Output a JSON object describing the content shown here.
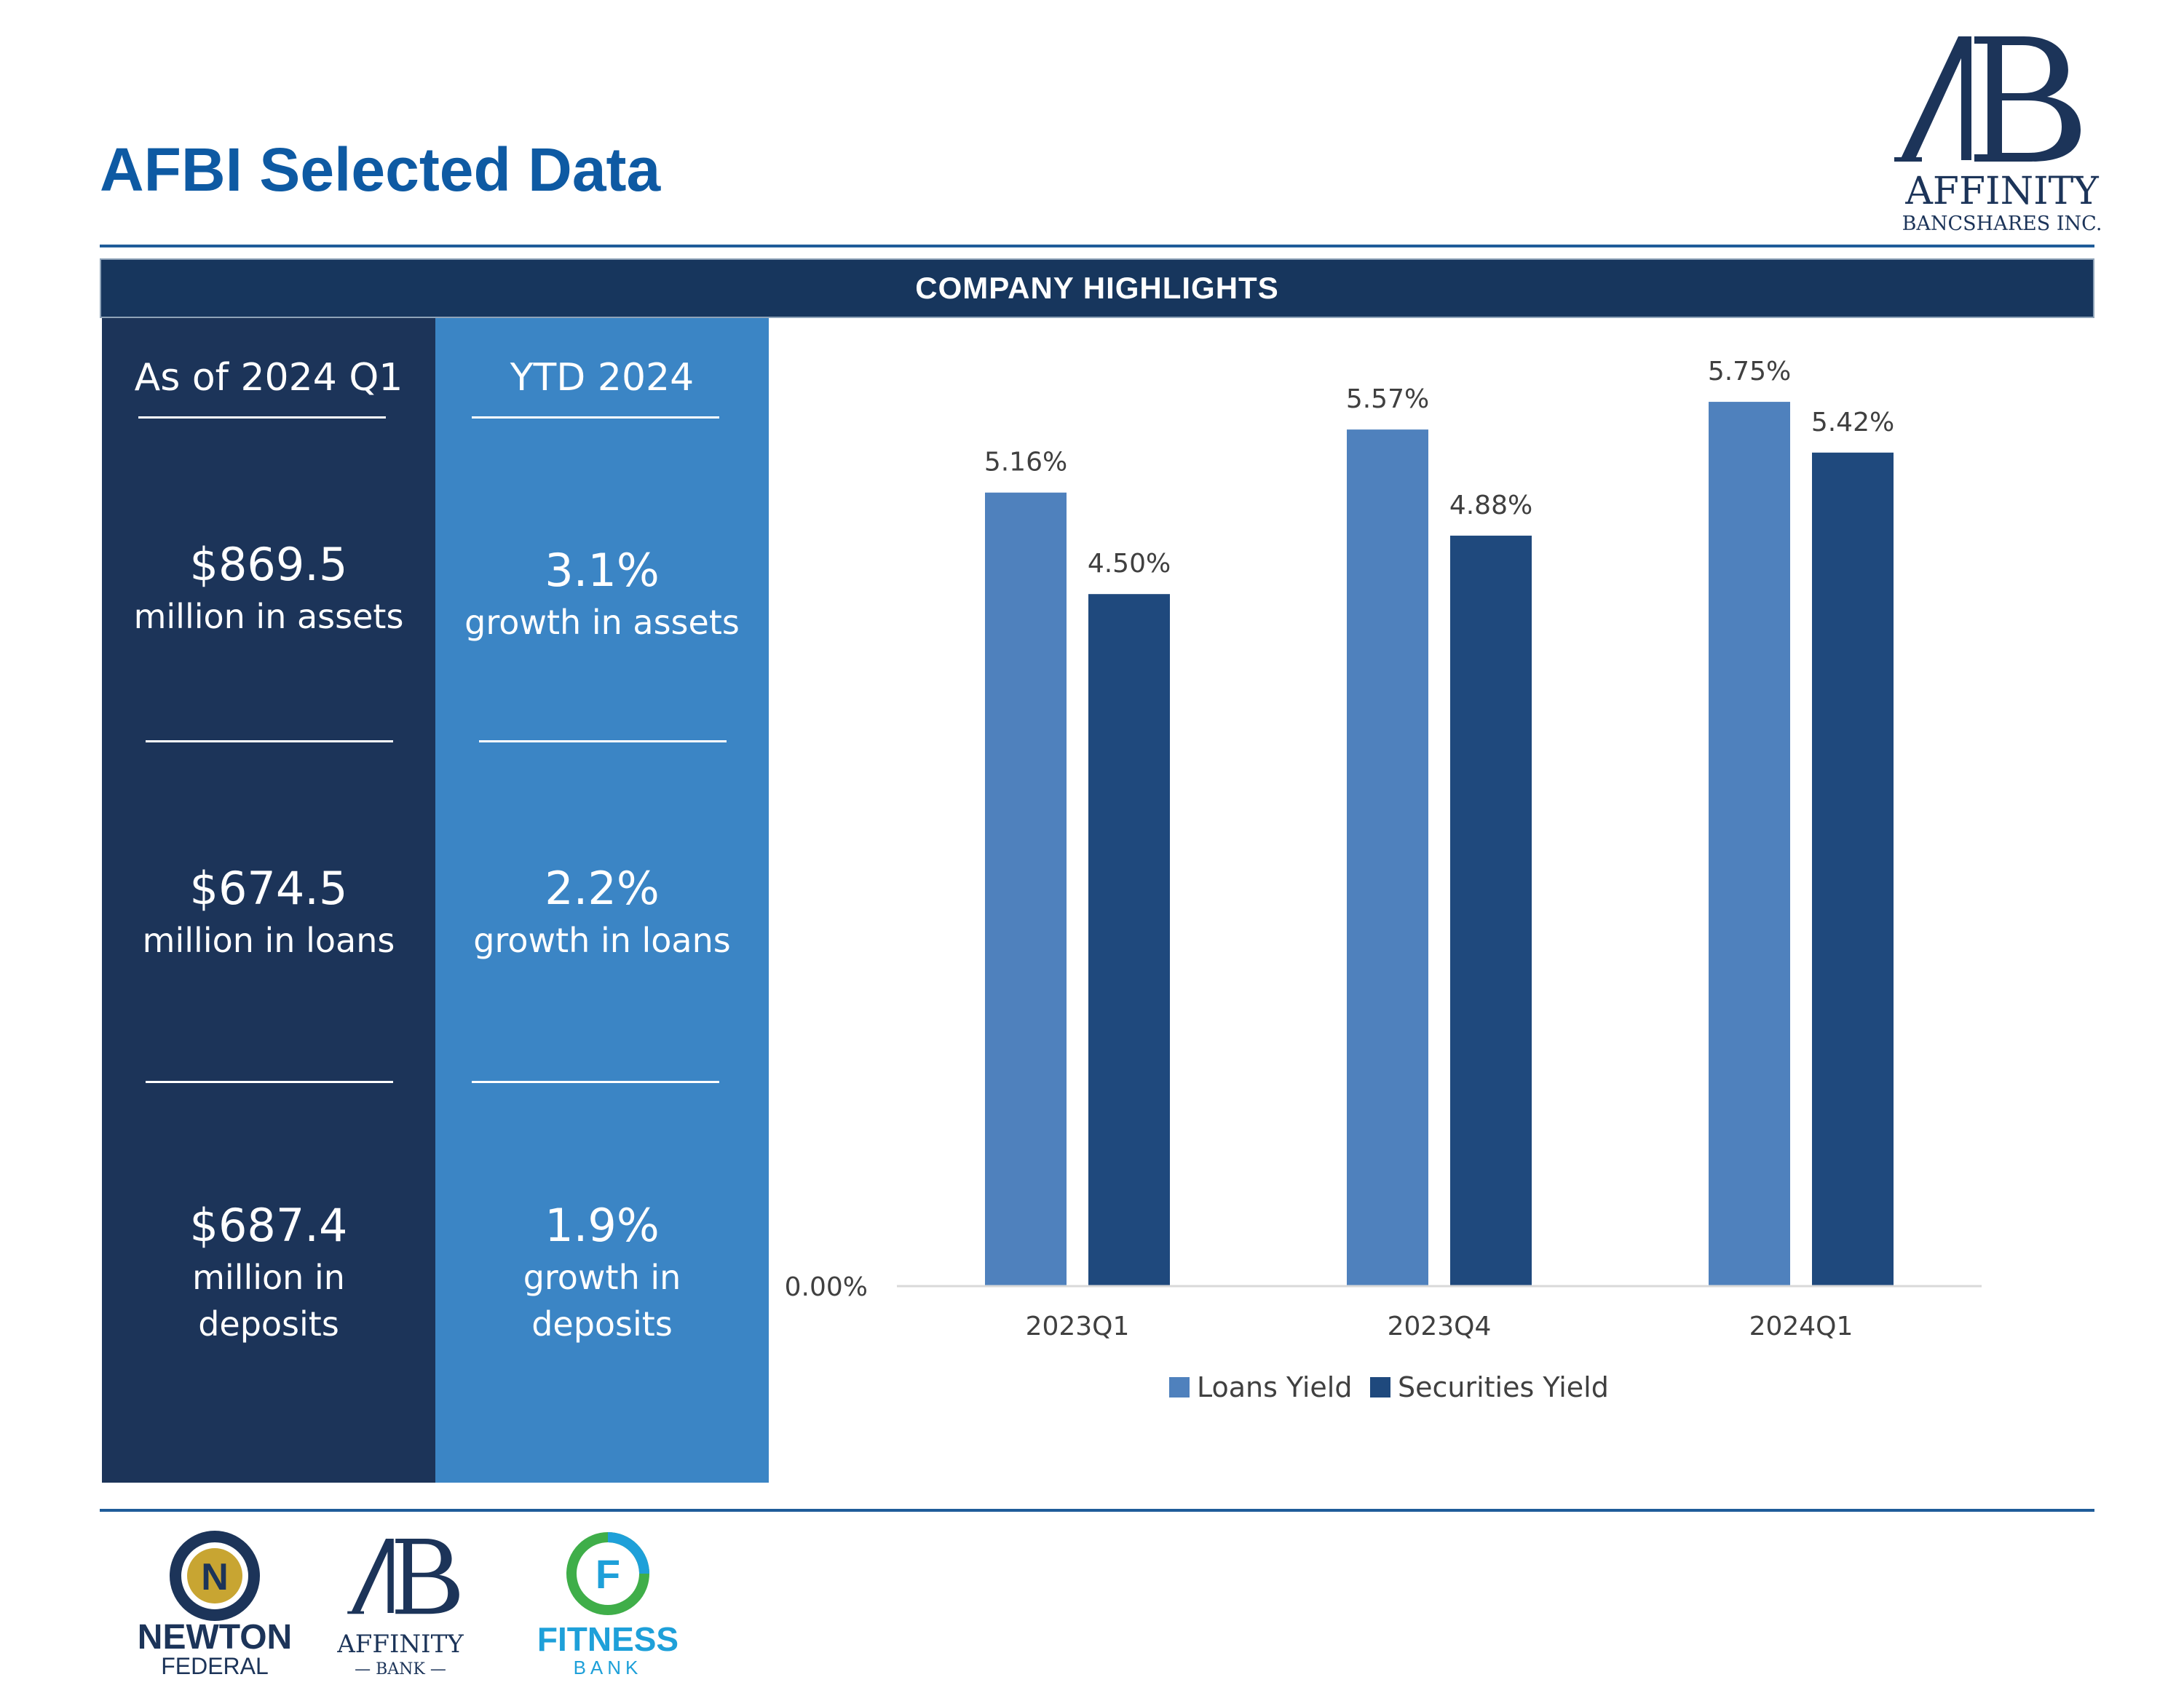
{
  "title": "AFBI Selected Data",
  "logo": {
    "monogram": "AB",
    "name": "AFFINITY",
    "sub": "BANCSHARES INC."
  },
  "section_header": "COMPANY HIGHLIGHTS",
  "left_column": {
    "heading": "As of 2024 Q1",
    "stats": [
      {
        "value": "$869.5",
        "lines": [
          "million in assets"
        ]
      },
      {
        "value": "$674.5",
        "lines": [
          "million in loans"
        ]
      },
      {
        "value": "$687.4",
        "lines": [
          "million in",
          "deposits"
        ]
      }
    ]
  },
  "right_column": {
    "heading": "YTD 2024",
    "stats": [
      {
        "value": "3.1%",
        "lines": [
          "growth in assets"
        ]
      },
      {
        "value": "2.2%",
        "lines": [
          "growth in loans"
        ]
      },
      {
        "value": "1.9%",
        "lines": [
          "growth in",
          "deposits"
        ]
      }
    ]
  },
  "chart_data": {
    "type": "bar",
    "categories": [
      "2023Q1",
      "2023Q4",
      "2024Q1"
    ],
    "series": [
      {
        "name": "Loans Yield",
        "values": [
          5.16,
          5.57,
          5.75
        ],
        "labels": [
          "5.16%",
          "5.57%",
          "5.75%"
        ],
        "color": "#4f81bd"
      },
      {
        "name": "Securities Yield",
        "values": [
          4.5,
          4.88,
          5.42
        ],
        "labels": [
          "4.50%",
          "4.88%",
          "5.42%"
        ],
        "color": "#1f497d"
      }
    ],
    "y_tick_labels": [
      "0.00%"
    ],
    "ylim": [
      0,
      6.2
    ],
    "legend_position": "bottom",
    "grid": false
  },
  "footer_logos": {
    "newton": {
      "name": "NEWTON",
      "sub": "FEDERAL",
      "mark": "N"
    },
    "affinity_bank": {
      "monogram": "AB",
      "name": "AFFINITY",
      "sub": "— BANK —"
    },
    "fitness": {
      "name": "FITNESS",
      "sub": "BANK",
      "mark": "F"
    }
  },
  "colors": {
    "title": "#0e5aa3",
    "header_bar": "#17365d",
    "left_column": "#1c3459",
    "right_column": "#3b85c5",
    "loans": "#4f81bd",
    "securities": "#1f497d"
  }
}
